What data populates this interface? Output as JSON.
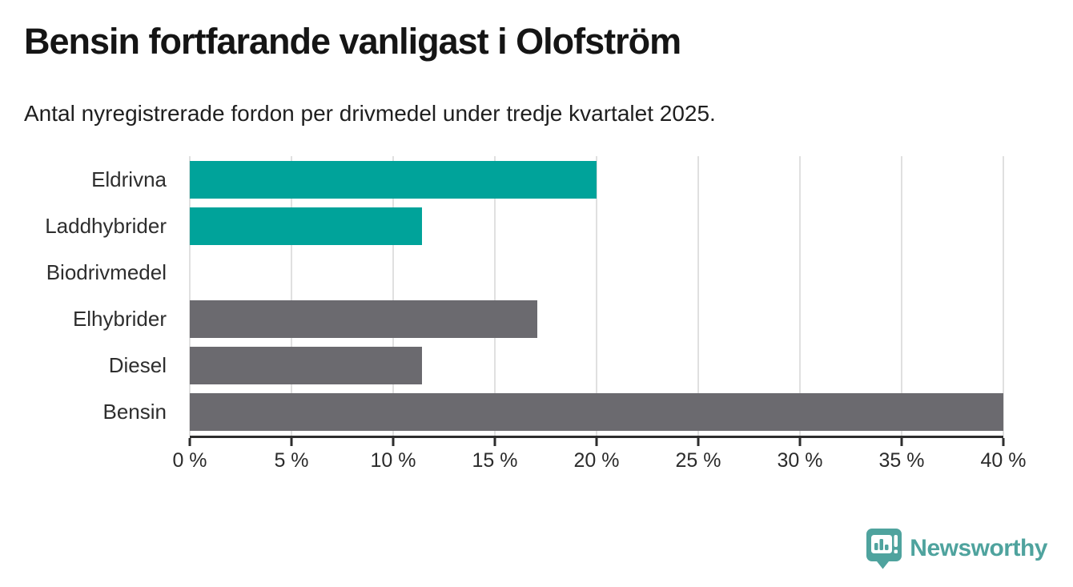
{
  "header": {
    "title": "Bensin fortfarande vanligast i Olofström",
    "subtitle": "Antal nyregistrerade fordon per drivmedel under tredje kvartalet 2025."
  },
  "chart_data": {
    "type": "bar",
    "orientation": "horizontal",
    "title": "Bensin fortfarande vanligast i Olofström",
    "subtitle": "Antal nyregistrerade fordon per drivmedel under tredje kvartalet 2025.",
    "categories": [
      "Eldrivna",
      "Laddhybrider",
      "Biodrivmedel",
      "Elhybrider",
      "Diesel",
      "Bensin"
    ],
    "values": [
      20,
      11.4,
      0,
      17.1,
      11.4,
      40
    ],
    "unit": "%",
    "bar_colors": [
      "#00a39a",
      "#00a39a",
      "#6b6a6f",
      "#6b6a6f",
      "#6b6a6f",
      "#6b6a6f"
    ],
    "xlim": [
      0,
      40
    ],
    "x_ticks": [
      0,
      5,
      10,
      15,
      20,
      25,
      30,
      35,
      40
    ],
    "x_tick_labels": [
      "0 %",
      "5 %",
      "10 %",
      "15 %",
      "20 %",
      "25 %",
      "30 %",
      "35 %",
      "40 %"
    ],
    "xlabel": "",
    "ylabel": "",
    "grid": true,
    "legend": false
  },
  "footer": {
    "brand": "Newsworthy"
  },
  "colors": {
    "accent_teal": "#00a39a",
    "neutral_gray": "#6b6a6f",
    "gridline": "#e0e0e0",
    "axis": "#2d2d2d",
    "brand_teal": "#4fa39e",
    "background": "#ffffff",
    "title_text": "#151515",
    "body_text": "#2e2e2e"
  }
}
